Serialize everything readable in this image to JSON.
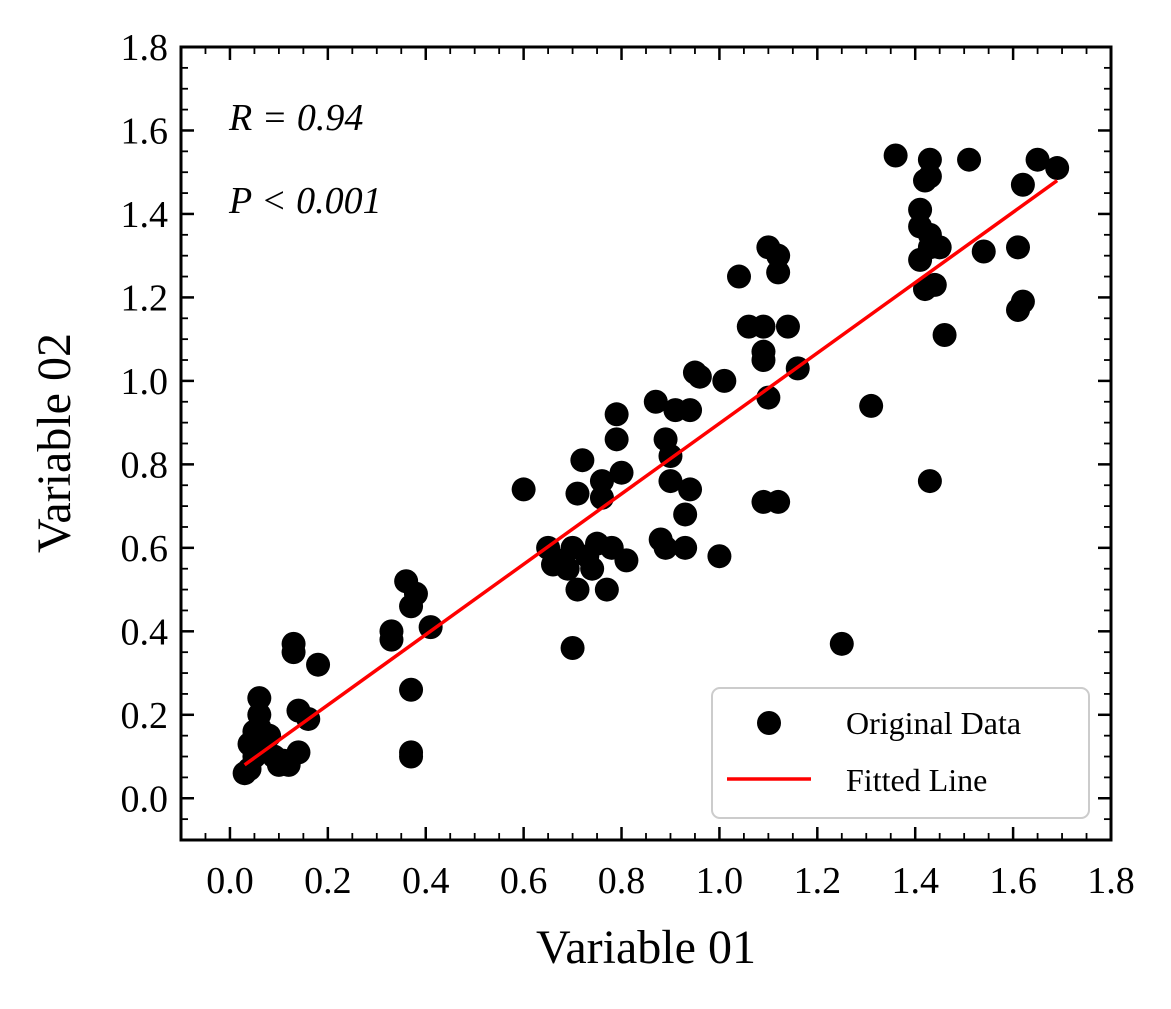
{
  "chart_data": {
    "type": "scatter",
    "title": "",
    "xlabel": "Variable 01",
    "ylabel": "Variable 02",
    "xlim": [
      -0.1,
      1.8
    ],
    "ylim": [
      -0.1,
      1.8
    ],
    "xticks": [
      "0.0",
      "0.2",
      "0.4",
      "0.6",
      "0.8",
      "1.0",
      "1.2",
      "1.4",
      "1.6",
      "1.8"
    ],
    "yticks": [
      "0.0",
      "0.2",
      "0.4",
      "0.6",
      "0.8",
      "1.0",
      "1.2",
      "1.4",
      "1.6",
      "1.8"
    ],
    "xtick_values": [
      0.0,
      0.2,
      0.4,
      0.6,
      0.8,
      1.0,
      1.2,
      1.4,
      1.6,
      1.8
    ],
    "ytick_values": [
      0.0,
      0.2,
      0.4,
      0.6,
      0.8,
      1.0,
      1.2,
      1.4,
      1.6,
      1.8
    ],
    "grid": false,
    "legend_position": "bottom-right",
    "annotations": [
      "R = 0.94",
      "P < 0.001"
    ],
    "series": [
      {
        "name": "Original Data",
        "kind": "scatter",
        "color": "#000000",
        "points": [
          [
            0.03,
            0.06
          ],
          [
            0.04,
            0.07
          ],
          [
            0.04,
            0.13
          ],
          [
            0.05,
            0.1
          ],
          [
            0.05,
            0.16
          ],
          [
            0.06,
            0.24
          ],
          [
            0.06,
            0.2
          ],
          [
            0.06,
            0.17
          ],
          [
            0.07,
            0.14
          ],
          [
            0.07,
            0.12
          ],
          [
            0.08,
            0.15
          ],
          [
            0.09,
            0.1
          ],
          [
            0.1,
            0.08
          ],
          [
            0.11,
            0.09
          ],
          [
            0.12,
            0.08
          ],
          [
            0.13,
            0.35
          ],
          [
            0.13,
            0.37
          ],
          [
            0.14,
            0.21
          ],
          [
            0.14,
            0.11
          ],
          [
            0.16,
            0.19
          ],
          [
            0.18,
            0.32
          ],
          [
            0.33,
            0.38
          ],
          [
            0.33,
            0.4
          ],
          [
            0.36,
            0.52
          ],
          [
            0.37,
            0.46
          ],
          [
            0.37,
            0.26
          ],
          [
            0.37,
            0.11
          ],
          [
            0.37,
            0.1
          ],
          [
            0.38,
            0.49
          ],
          [
            0.41,
            0.41
          ],
          [
            0.6,
            0.74
          ],
          [
            0.65,
            0.6
          ],
          [
            0.66,
            0.56
          ],
          [
            0.68,
            0.57
          ],
          [
            0.69,
            0.55
          ],
          [
            0.7,
            0.6
          ],
          [
            0.7,
            0.36
          ],
          [
            0.71,
            0.5
          ],
          [
            0.71,
            0.73
          ],
          [
            0.72,
            0.81
          ],
          [
            0.73,
            0.58
          ],
          [
            0.74,
            0.55
          ],
          [
            0.75,
            0.61
          ],
          [
            0.76,
            0.72
          ],
          [
            0.76,
            0.76
          ],
          [
            0.77,
            0.5
          ],
          [
            0.78,
            0.6
          ],
          [
            0.79,
            0.86
          ],
          [
            0.79,
            0.92
          ],
          [
            0.8,
            0.78
          ],
          [
            0.81,
            0.57
          ],
          [
            0.87,
            0.95
          ],
          [
            0.88,
            0.62
          ],
          [
            0.89,
            0.6
          ],
          [
            0.89,
            0.86
          ],
          [
            0.9,
            0.76
          ],
          [
            0.9,
            0.82
          ],
          [
            0.91,
            0.93
          ],
          [
            0.93,
            0.6
          ],
          [
            0.93,
            0.68
          ],
          [
            0.94,
            0.93
          ],
          [
            0.94,
            0.74
          ],
          [
            0.95,
            1.02
          ],
          [
            0.96,
            1.01
          ],
          [
            1.0,
            0.58
          ],
          [
            1.01,
            1.0
          ],
          [
            1.04,
            1.25
          ],
          [
            1.06,
            1.13
          ],
          [
            1.09,
            1.13
          ],
          [
            1.09,
            0.71
          ],
          [
            1.09,
            1.05
          ],
          [
            1.09,
            1.07
          ],
          [
            1.1,
            1.32
          ],
          [
            1.1,
            0.96
          ],
          [
            1.12,
            1.3
          ],
          [
            1.12,
            1.26
          ],
          [
            1.12,
            0.71
          ],
          [
            1.14,
            1.13
          ],
          [
            1.16,
            1.03
          ],
          [
            1.25,
            0.37
          ],
          [
            1.31,
            0.94
          ],
          [
            1.36,
            1.54
          ],
          [
            1.41,
            1.41
          ],
          [
            1.41,
            1.37
          ],
          [
            1.41,
            1.29
          ],
          [
            1.42,
            1.22
          ],
          [
            1.42,
            1.48
          ],
          [
            1.43,
            1.49
          ],
          [
            1.43,
            1.53
          ],
          [
            1.43,
            1.35
          ],
          [
            1.43,
            1.32
          ],
          [
            1.43,
            0.76
          ],
          [
            1.44,
            1.23
          ],
          [
            1.45,
            1.32
          ],
          [
            1.46,
            1.11
          ],
          [
            1.51,
            1.53
          ],
          [
            1.54,
            1.31
          ],
          [
            1.61,
            1.32
          ],
          [
            1.61,
            1.17
          ],
          [
            1.62,
            1.47
          ],
          [
            1.62,
            1.19
          ],
          [
            1.65,
            1.53
          ],
          [
            1.69,
            1.51
          ]
        ]
      },
      {
        "name": "Fitted Line",
        "kind": "line",
        "color": "#ff0000",
        "x": [
          0.03,
          1.69
        ],
        "y": [
          0.08,
          1.48
        ]
      }
    ]
  }
}
